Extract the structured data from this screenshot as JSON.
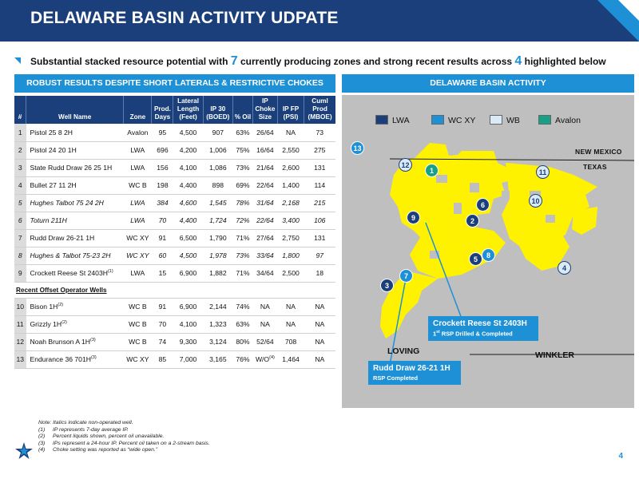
{
  "header": {
    "title": "DELAWARE BASIN ACTIVITY UDPATE"
  },
  "subtitle": {
    "part1": "Substantial stacked resource potential with ",
    "num1": "7",
    "part2": " currently producing zones and strong recent results across ",
    "num2": "4",
    "part3": " highlighted below"
  },
  "left_panel": {
    "title": "ROBUST RESULTS DESPITE SHORT LATERALS & RESTRICTIVE CHOKES"
  },
  "right_panel": {
    "title": "DELAWARE BASIN ACTIVITY"
  },
  "table": {
    "headers": [
      "#",
      "Well Name",
      "Zone",
      "Prod. Days",
      "Lateral Length (Feet)",
      "IP 30 (BOED)",
      "% Oil",
      "IP Choke Size",
      "IP FP (PSI)",
      "Cuml Prod (MBOE)"
    ],
    "rows": [
      {
        "n": "1",
        "name": "Pistol 25 8 2H",
        "zone": "Avalon",
        "days": "95",
        "lat": "4,500",
        "ip": "907",
        "oil": "63%",
        "choke": "26/64",
        "fp": "NA",
        "cuml": "73",
        "italic": false
      },
      {
        "n": "2",
        "name": "Pistol 24 20 1H",
        "zone": "LWA",
        "days": "696",
        "lat": "4,200",
        "ip": "1,006",
        "oil": "75%",
        "choke": "16/64",
        "fp": "2,550",
        "cuml": "275",
        "italic": false
      },
      {
        "n": "3",
        "name": "State Rudd Draw 26 25 1H",
        "zone": "LWA",
        "days": "156",
        "lat": "4,100",
        "ip": "1,086",
        "oil": "73%",
        "choke": "21/64",
        "fp": "2,600",
        "cuml": "131",
        "italic": false
      },
      {
        "n": "4",
        "name": "Bullet 27 11 2H",
        "zone": "WC B",
        "days": "198",
        "lat": "4,400",
        "ip": "898",
        "oil": "69%",
        "choke": "22/64",
        "fp": "1,400",
        "cuml": "114",
        "italic": false
      },
      {
        "n": "5",
        "name": "Hughes Talbot 75 24 2H",
        "zone": "LWA",
        "days": "384",
        "lat": "4,600",
        "ip": "1,545",
        "oil": "78%",
        "choke": "31/64",
        "fp": "2,168",
        "cuml": "215",
        "italic": true
      },
      {
        "n": "6",
        "name": "Toturn 211H",
        "zone": "LWA",
        "days": "70",
        "lat": "4,400",
        "ip": "1,724",
        "oil": "72%",
        "choke": "22/64",
        "fp": "3,400",
        "cuml": "106",
        "italic": true
      },
      {
        "n": "7",
        "name": "Rudd Draw 26-21 1H",
        "zone": "WC XY",
        "days": "91",
        "lat": "6,500",
        "ip": "1,790",
        "oil": "71%",
        "choke": "27/64",
        "fp": "2,750",
        "cuml": "131",
        "italic": false
      },
      {
        "n": "8",
        "name": "Hughes & Talbot 75-23 2H",
        "zone": "WC XY",
        "days": "60",
        "lat": "4,500",
        "ip": "1,978",
        "oil": "73%",
        "choke": "33/64",
        "fp": "1,800",
        "cuml": "97",
        "italic": true
      },
      {
        "n": "9",
        "name": "Crockett Reese St 2403H",
        "sup": "(1)",
        "zone": "LWA",
        "days": "15",
        "lat": "6,900",
        "ip": "1,882",
        "oil": "71%",
        "choke": "34/64",
        "fp": "2,500",
        "cuml": "18",
        "italic": false
      }
    ],
    "section_label": "Recent Offset Operator Wells",
    "offset_rows": [
      {
        "n": "10",
        "name": "Bison 1H",
        "sup": "(2)",
        "zone": "WC B",
        "days": "91",
        "lat": "6,900",
        "ip": "2,144",
        "oil": "74%",
        "choke": "NA",
        "fp": "NA",
        "cuml": "NA",
        "italic": false
      },
      {
        "n": "11",
        "name": "Grizzly 1H",
        "sup": "(2)",
        "zone": "WC B",
        "days": "70",
        "lat": "4,100",
        "ip": "1,323",
        "oil": "63%",
        "choke": "NA",
        "fp": "NA",
        "cuml": "NA",
        "italic": false
      },
      {
        "n": "12",
        "name": "Noah Brunson A 1H",
        "sup": "(3)",
        "zone": "WC B",
        "days": "74",
        "lat": "9,300",
        "ip": "3,124",
        "oil": "80%",
        "choke": "52/64",
        "fp": "708",
        "cuml": "NA",
        "italic": false
      },
      {
        "n": "13",
        "name": "Endurance 36 701H",
        "sup": "(3)",
        "zone": "WC XY",
        "days": "85",
        "lat": "7,000",
        "ip": "3,165",
        "oil": "76%",
        "choke": "W/O",
        "choke_sup": "(4)",
        "fp": "1,464",
        "cuml": "NA",
        "italic": false
      }
    ]
  },
  "map": {
    "legend": [
      {
        "label": "LWA",
        "color": "#1a3f7a"
      },
      {
        "label": "WC XY",
        "color": "#1e90d6"
      },
      {
        "label": "WB",
        "color": "#dbeaf7"
      },
      {
        "label": "Avalon",
        "color": "#16a085"
      }
    ],
    "state_new_mexico": "NEW MEXICO",
    "state_texas": "TEXAS",
    "county_loving": "LOVING",
    "county_winkler": "WINKLER",
    "callout1_title": "Crockett Reese St 2403H",
    "callout1_sub_a": "1",
    "callout1_sub_sup": "st",
    "callout1_sub_b": " RSP Drilled & Completed",
    "callout2_title": "Rudd Draw 26-21 1H",
    "callout2_sub": "RSP Completed",
    "markers": [
      "1",
      "2",
      "3",
      "4",
      "5",
      "6",
      "7",
      "8",
      "9",
      "10",
      "11",
      "12",
      "13"
    ]
  },
  "notes": {
    "intro": "Note: Italics indicate non-operated well.",
    "items": [
      {
        "k": "(1)",
        "v": "IP represents 7-day average IP."
      },
      {
        "k": "(2)",
        "v": "Percent liquids shown, percent oil unavailable."
      },
      {
        "k": "(3)",
        "v": "IPs represent a 24-hour IP. Percent oil taken on a 2-stream basis."
      },
      {
        "k": "(4)",
        "v": "Choke setting was reported as “wide open.”"
      }
    ]
  },
  "page_number": "4"
}
